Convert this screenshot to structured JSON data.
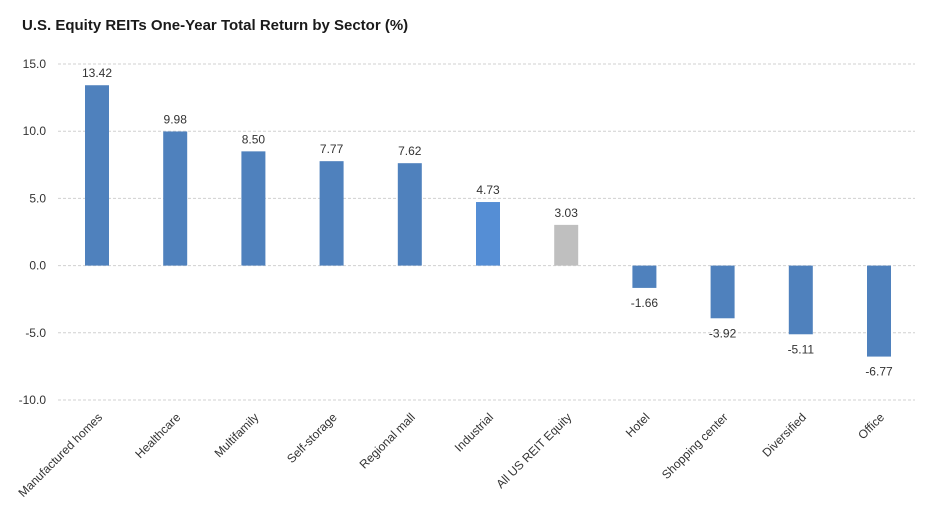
{
  "chart_data": {
    "type": "bar",
    "title": "U.S. Equity REITs One-Year Total Return by Sector (%)",
    "xlabel": "",
    "ylabel": "",
    "ylim": [
      -10,
      15
    ],
    "yticks": [
      "15.0",
      "10.0",
      "5.0",
      "0.0",
      "-5.0",
      "-10.0"
    ],
    "ytick_values": [
      15,
      10,
      5,
      0,
      -5,
      -10
    ],
    "grid": true,
    "legend": "none",
    "categories": [
      "Manufactured homes",
      "Healthcare",
      "Multifamily",
      "Self-storage",
      "Regional mall",
      "Industrial",
      "All US REIT Equity",
      "Hotel",
      "Shopping center",
      "Diversified",
      "Office"
    ],
    "values": [
      13.42,
      9.98,
      8.5,
      7.77,
      7.62,
      4.73,
      3.03,
      -1.66,
      -3.92,
      -5.11,
      -6.77
    ],
    "value_labels": [
      "13.42",
      "9.98",
      "8.50",
      "7.77",
      "7.62",
      "4.73",
      "3.03",
      "-1.66",
      "-3.92",
      "-5.11",
      "-6.77"
    ],
    "bar_colors": [
      "#4f81bd",
      "#4f81bd",
      "#4f81bd",
      "#4f81bd",
      "#4f81bd",
      "#558ed5",
      "#bfbfbf",
      "#4f81bd",
      "#4f81bd",
      "#4f81bd",
      "#4f81bd"
    ]
  }
}
